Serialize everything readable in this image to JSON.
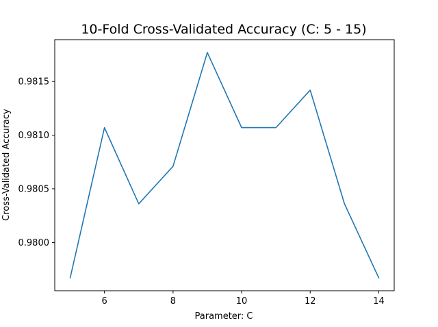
{
  "chart_data": {
    "type": "line",
    "title": "10-Fold Cross-Validated Accuracy (C: 5 - 15)",
    "xlabel": "Parameter: C",
    "ylabel": "Cross-Validated Accuracy",
    "xlim": [
      4.55,
      14.45
    ],
    "ylim": [
      0.97955,
      0.98189
    ],
    "xticks": [
      6,
      8,
      10,
      12,
      14
    ],
    "yticks": [
      0.98,
      0.9805,
      0.981,
      0.9815
    ],
    "xtick_labels": [
      "6",
      "8",
      "10",
      "12",
      "14"
    ],
    "ytick_labels": [
      "0.9800",
      "0.9805",
      "0.9810",
      "0.9815"
    ],
    "grid": false,
    "series": [
      {
        "color": "#1f77b4",
        "x": [
          5,
          6,
          7,
          8,
          9,
          10,
          11,
          12,
          13,
          14
        ],
        "y": [
          0.97967,
          0.98107,
          0.98036,
          0.98071,
          0.98177,
          0.98107,
          0.98107,
          0.98142,
          0.98036,
          0.97967
        ]
      }
    ]
  }
}
